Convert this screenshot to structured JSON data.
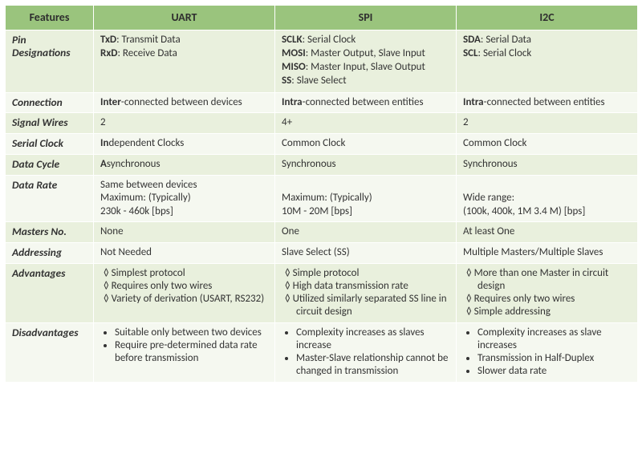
{
  "colors": {
    "header_bg": "#9ac47d",
    "band_a": "#e9f0dd",
    "band_b": "#f5f8f0",
    "border": "#ffffff",
    "text": "#333333"
  },
  "columns": {
    "features": "Features",
    "uart": "UART",
    "spi": "SPI",
    "i2c": "I2C"
  },
  "rows": {
    "pin_designations": {
      "label": "Pin Designations",
      "uart": [
        {
          "abbr": "TxD",
          "desc": "Transmit Data"
        },
        {
          "abbr": "RxD",
          "desc": "Receive Data"
        }
      ],
      "spi": [
        {
          "abbr": "SCLK",
          "desc": "Serial Clock"
        },
        {
          "abbr": "MOSI",
          "desc": "Master Output, Slave Input"
        },
        {
          "abbr": "MISO",
          "desc": "Master Input, Slave Output"
        },
        {
          "abbr": "SS",
          "desc": "Slave Select"
        }
      ],
      "i2c": [
        {
          "abbr": "SDA",
          "desc": "Serial Data"
        },
        {
          "abbr": "SCL",
          "desc": "Serial Clock"
        }
      ]
    },
    "connection": {
      "label": "Connection",
      "uart_bold": "Inter",
      "uart_rest": "-connected between devices",
      "spi_bold": "Intra",
      "spi_rest": "-connected between entities",
      "i2c_bold": "Intra",
      "i2c_rest": "-connected between entities"
    },
    "signal_wires": {
      "label": "Signal Wires",
      "uart": "2",
      "spi": "4+",
      "i2c": "2"
    },
    "serial_clock": {
      "label": "Serial Clock",
      "uart_bold": "In",
      "uart_rest": "dependent Clocks",
      "spi": "Common Clock",
      "i2c": "Common Clock"
    },
    "data_cycle": {
      "label": "Data Cycle",
      "uart_bold": "A",
      "uart_rest": "synchronous",
      "spi": "Synchronous",
      "i2c": "Synchronous"
    },
    "data_rate": {
      "label": "Data Rate",
      "uart_l1": "Same between devices",
      "uart_l2": "Maximum: (Typically)",
      "uart_l3": "230k - 460k [bps]",
      "spi_l1": "Maximum: (Typically)",
      "spi_l2": "10M - 20M [bps]",
      "i2c_l1": "Wide range:",
      "i2c_l2": "(100k, 400k, 1M 3.4 M) [bps]"
    },
    "masters_no": {
      "label": "Masters No.",
      "uart": "None",
      "spi": "One",
      "i2c": "At least One"
    },
    "addressing": {
      "label": "Addressing",
      "uart": "Not Needed",
      "spi": "Slave Select (SS)",
      "i2c": "Multiple Masters/Multiple Slaves"
    },
    "advantages": {
      "label": "Advantages",
      "uart": [
        "Simplest protocol",
        "Requires only two wires",
        "Variety of derivation (USART, RS232)"
      ],
      "spi": [
        "Simple protocol",
        "High data transmission rate",
        "Utilized similarly separated SS line in circuit design"
      ],
      "i2c": [
        "More than one Master in circuit design",
        "Requires only two wires",
        "Simple addressing"
      ]
    },
    "disadvantages": {
      "label": "Disadvantages",
      "uart": [
        "Suitable only between two devices",
        "Require pre-determined data rate before transmission"
      ],
      "spi": [
        "Complexity increases as slaves increase",
        "Master-Slave relationship cannot be changed in transmission"
      ],
      "i2c": [
        "Complexity increases as slave increases",
        "Transmission in Half-Duplex",
        "Slower data rate"
      ]
    }
  }
}
